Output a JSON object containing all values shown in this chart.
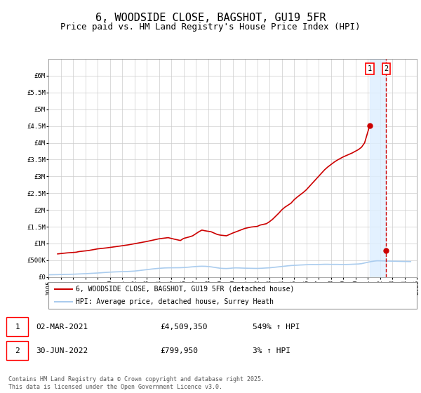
{
  "title": "6, WOODSIDE CLOSE, BAGSHOT, GU19 5FR",
  "subtitle": "Price paid vs. HM Land Registry's House Price Index (HPI)",
  "title_fontsize": 11,
  "subtitle_fontsize": 9,
  "background_color": "#ffffff",
  "plot_bg_color": "#ffffff",
  "grid_color": "#cccccc",
  "ylim": [
    0,
    6500000
  ],
  "yticks": [
    0,
    500000,
    1000000,
    1500000,
    2000000,
    2500000,
    3000000,
    3500000,
    4000000,
    4500000,
    5000000,
    5500000,
    6000000
  ],
  "ytick_labels": [
    "£0",
    "£500K",
    "£1M",
    "£1.5M",
    "£2M",
    "£2.5M",
    "£3M",
    "£3.5M",
    "£4M",
    "£4.5M",
    "£5M",
    "£5.5M",
    "£6M"
  ],
  "xmin_year": 1995,
  "xmax_year": 2025,
  "xticks": [
    1995,
    1996,
    1997,
    1998,
    1999,
    2000,
    2001,
    2002,
    2003,
    2004,
    2005,
    2006,
    2007,
    2008,
    2009,
    2010,
    2011,
    2012,
    2013,
    2014,
    2015,
    2016,
    2017,
    2018,
    2019,
    2020,
    2021,
    2022,
    2023,
    2024,
    2025
  ],
  "hpi_color": "#aaccee",
  "price_color": "#cc0000",
  "dashed_line_color": "#cc0000",
  "marker1_year": 2021.16,
  "marker1_price": 4509350,
  "marker2_year": 2022.5,
  "marker2_price": 799950,
  "shaded_color": "#ddeeff",
  "legend_label_price": "6, WOODSIDE CLOSE, BAGSHOT, GU19 5FR (detached house)",
  "legend_label_hpi": "HPI: Average price, detached house, Surrey Heath",
  "annotation1_label": "1",
  "annotation2_label": "2",
  "table_row1": [
    "1",
    "02-MAR-2021",
    "£4,509,350",
    "549% ↑ HPI"
  ],
  "table_row2": [
    "2",
    "30-JUN-2022",
    "£799,950",
    "3% ↑ HPI"
  ],
  "footer": "Contains HM Land Registry data © Crown copyright and database right 2025.\nThis data is licensed under the Open Government Licence v3.0.",
  "hpi_data_x": [
    1995.0,
    1995.25,
    1995.5,
    1995.75,
    1996.0,
    1996.25,
    1996.5,
    1996.75,
    1997.0,
    1997.25,
    1997.5,
    1997.75,
    1998.0,
    1998.25,
    1998.5,
    1998.75,
    1999.0,
    1999.25,
    1999.5,
    1999.75,
    2000.0,
    2000.25,
    2000.5,
    2000.75,
    2001.0,
    2001.25,
    2001.5,
    2001.75,
    2002.0,
    2002.25,
    2002.5,
    2002.75,
    2003.0,
    2003.25,
    2003.5,
    2003.75,
    2004.0,
    2004.25,
    2004.5,
    2004.75,
    2005.0,
    2005.25,
    2005.5,
    2005.75,
    2006.0,
    2006.25,
    2006.5,
    2006.75,
    2007.0,
    2007.25,
    2007.5,
    2007.75,
    2008.0,
    2008.25,
    2008.5,
    2008.75,
    2009.0,
    2009.25,
    2009.5,
    2009.75,
    2010.0,
    2010.25,
    2010.5,
    2010.75,
    2011.0,
    2011.25,
    2011.5,
    2011.75,
    2012.0,
    2012.25,
    2012.5,
    2012.75,
    2013.0,
    2013.25,
    2013.5,
    2013.75,
    2014.0,
    2014.25,
    2014.5,
    2014.75,
    2015.0,
    2015.25,
    2015.5,
    2015.75,
    2016.0,
    2016.25,
    2016.5,
    2016.75,
    2017.0,
    2017.25,
    2017.5,
    2017.75,
    2018.0,
    2018.25,
    2018.5,
    2018.75,
    2019.0,
    2019.25,
    2019.5,
    2019.75,
    2020.0,
    2020.25,
    2020.5,
    2020.75,
    2021.0,
    2021.25,
    2021.5,
    2021.75,
    2022.0,
    2022.25,
    2022.5,
    2022.75,
    2023.0,
    2023.25,
    2023.5,
    2023.75,
    2024.0,
    2024.25,
    2024.5
  ],
  "hpi_data_y": [
    68000,
    69500,
    71000,
    72500,
    74500,
    77000,
    79500,
    82000,
    85000,
    89000,
    93000,
    97000,
    101000,
    106000,
    111000,
    116000,
    121000,
    127000,
    134000,
    140000,
    146000,
    151000,
    155000,
    158000,
    161000,
    164000,
    168000,
    172000,
    178000,
    188000,
    199000,
    210000,
    221000,
    232000,
    243000,
    252000,
    260000,
    267000,
    272000,
    275000,
    276000,
    277000,
    278000,
    279000,
    283000,
    290000,
    298000,
    306000,
    314000,
    320000,
    323000,
    321000,
    315000,
    304000,
    290000,
    276000,
    263000,
    257000,
    255000,
    260000,
    269000,
    274000,
    272000,
    268000,
    265000,
    263000,
    261000,
    259000,
    258000,
    261000,
    266000,
    271000,
    276000,
    285000,
    295000,
    305000,
    315000,
    325000,
    335000,
    343000,
    349000,
    354000,
    359000,
    363000,
    368000,
    373000,
    375000,
    373000,
    375000,
    378000,
    381000,
    381000,
    378000,
    378000,
    378000,
    376000,
    374000,
    376000,
    378000,
    382000,
    386000,
    390000,
    400000,
    420000,
    440000,
    460000,
    475000,
    485000,
    484000,
    482000,
    478000,
    476000,
    474000,
    471000,
    469000,
    467000,
    465000,
    463000,
    461000
  ],
  "price_data_x": [
    1995.75,
    1996.5,
    1997.25,
    1997.5,
    1998.25,
    1999.0,
    1999.75,
    2000.75,
    2001.5,
    2002.25,
    2003.0,
    2003.5,
    2004.0,
    2004.75,
    2005.25,
    2005.75,
    2006.0,
    2006.5,
    2006.75,
    2007.0,
    2007.25,
    2007.5,
    2007.75,
    2008.25,
    2008.5,
    2008.75,
    2009.0,
    2009.5,
    2010.0,
    2010.5,
    2011.0,
    2011.5,
    2012.0,
    2012.25,
    2012.75,
    2013.0,
    2013.25,
    2013.5,
    2013.75,
    2014.0,
    2014.25,
    2014.75,
    2015.0,
    2015.25,
    2015.5,
    2015.75,
    2016.0,
    2016.25,
    2016.5,
    2016.75,
    2017.0,
    2017.25,
    2017.5,
    2017.75,
    2018.0,
    2018.25,
    2018.5,
    2018.75,
    2019.0,
    2019.25,
    2019.5,
    2019.75,
    2020.0,
    2020.25,
    2020.5,
    2020.75,
    2021.16
  ],
  "price_data_y": [
    690000,
    720000,
    740000,
    760000,
    790000,
    840000,
    870000,
    920000,
    960000,
    1010000,
    1060000,
    1100000,
    1140000,
    1175000,
    1130000,
    1090000,
    1150000,
    1200000,
    1230000,
    1290000,
    1350000,
    1400000,
    1380000,
    1350000,
    1310000,
    1270000,
    1250000,
    1230000,
    1310000,
    1380000,
    1450000,
    1490000,
    1510000,
    1550000,
    1590000,
    1650000,
    1720000,
    1810000,
    1900000,
    2000000,
    2080000,
    2200000,
    2300000,
    2380000,
    2450000,
    2520000,
    2600000,
    2700000,
    2800000,
    2900000,
    3000000,
    3100000,
    3200000,
    3280000,
    3350000,
    3420000,
    3480000,
    3530000,
    3580000,
    3620000,
    3660000,
    3700000,
    3750000,
    3800000,
    3870000,
    4000000,
    4509350
  ]
}
